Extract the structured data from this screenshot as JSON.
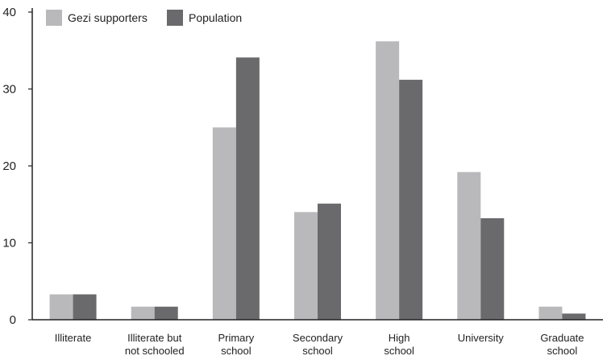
{
  "chart_data": {
    "type": "bar",
    "title": "",
    "xlabel": "",
    "ylabel": "",
    "ylim": [
      0,
      40
    ],
    "yticks": [
      0,
      10,
      20,
      30,
      40
    ],
    "grid": false,
    "legend_position": "top-left",
    "categories": [
      [
        "Illiterate"
      ],
      [
        "Illiterate but",
        "not schooled"
      ],
      [
        "Primary",
        "school"
      ],
      [
        "Secondary",
        "school"
      ],
      [
        "High",
        "school"
      ],
      [
        "University"
      ],
      [
        "Graduate",
        "school"
      ]
    ],
    "series": [
      {
        "name": "Gezi supporters",
        "color": "#b9b9bb",
        "values": [
          3.3,
          1.7,
          25.0,
          14.0,
          36.2,
          19.2,
          1.7
        ]
      },
      {
        "name": "Population",
        "color": "#6a6a6d",
        "values": [
          3.3,
          1.7,
          34.1,
          15.1,
          31.2,
          13.2,
          0.8
        ]
      }
    ]
  }
}
